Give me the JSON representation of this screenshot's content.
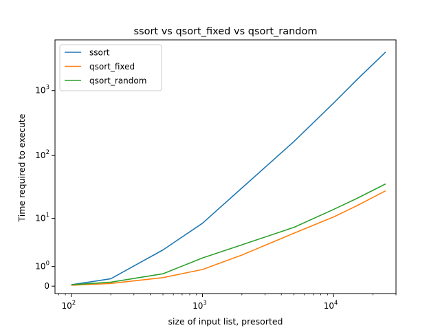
{
  "chart_data": {
    "type": "line",
    "title": "ssort vs qsort_fixed vs qsort_random",
    "xlabel": "size of input list, presorted",
    "ylabel": "Time required to execute",
    "x_scale": "log",
    "y_scale": "symlog",
    "xlim": [
      75,
      30000
    ],
    "ylim": [
      -0.3,
      6000
    ],
    "grid": false,
    "legend_position": "top-left",
    "x_ticks": [
      {
        "value": 100,
        "base": "10",
        "exp": "2"
      },
      {
        "value": 1000,
        "base": "10",
        "exp": "3"
      },
      {
        "value": 10000,
        "base": "10",
        "exp": "4"
      }
    ],
    "y_ticks": [
      {
        "value": 0,
        "text": "0"
      },
      {
        "value": 1,
        "base": "10",
        "exp": "0"
      },
      {
        "value": 10,
        "base": "10",
        "exp": "1"
      },
      {
        "value": 100,
        "base": "10",
        "exp": "2"
      },
      {
        "value": 1000,
        "base": "10",
        "exp": "3"
      }
    ],
    "x": [
      100,
      200,
      500,
      1000,
      2000,
      5000,
      10000,
      15000,
      25000
    ],
    "series": [
      {
        "name": "ssort",
        "color": "#1f77b4",
        "values": [
          0.05,
          0.3,
          2.6,
          8.2,
          31,
          165,
          640,
          1450,
          3900
        ]
      },
      {
        "name": "qsort_fixed",
        "color": "#ff7f0e",
        "values": [
          0.03,
          0.1,
          0.35,
          0.8,
          2.0,
          5.5,
          10.5,
          16,
          28
        ]
      },
      {
        "name": "qsort_random",
        "color": "#2ca02c",
        "values": [
          0.05,
          0.15,
          0.55,
          1.7,
          3.3,
          7.0,
          14,
          21,
          36
        ]
      }
    ]
  }
}
